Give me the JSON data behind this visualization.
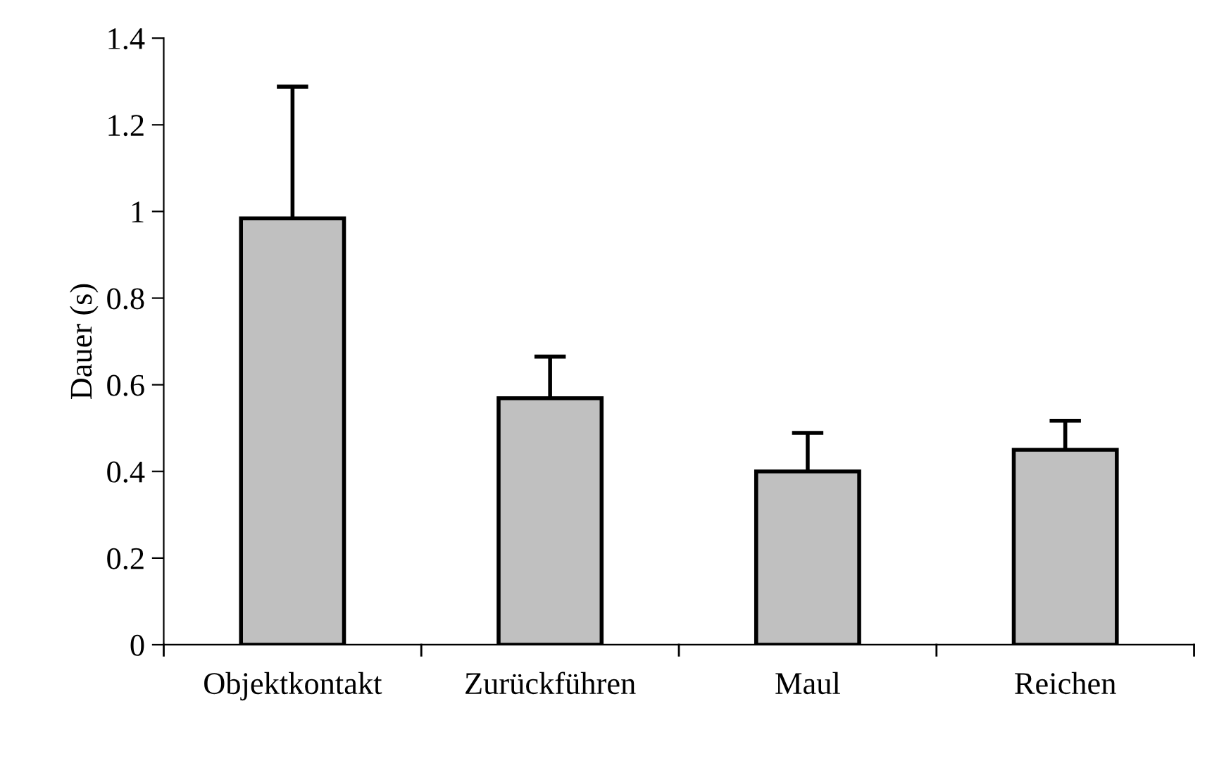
{
  "chart_data": {
    "type": "bar",
    "ylabel": "Dauer (s)",
    "categories": [
      "Objektkontakt",
      "Zurückführen",
      "Maul",
      "Reichen"
    ],
    "values": [
      0.984,
      0.569,
      0.4,
      0.45
    ],
    "errors": [
      0.304,
      0.096,
      0.089,
      0.067
    ],
    "color": "#c0c0c0",
    "ylim": [
      0,
      1.4
    ],
    "yticks": [
      0,
      0.2,
      0.4,
      0.6,
      0.8,
      1,
      1.2,
      1.4
    ],
    "grid": false
  }
}
